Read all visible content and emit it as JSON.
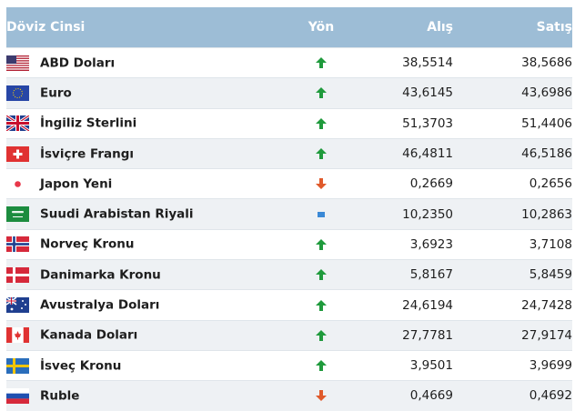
{
  "table": {
    "headers": {
      "name": "Döviz Cinsi",
      "direction": "Yön",
      "buy": "Alış",
      "sell": "Satış"
    },
    "rows": [
      {
        "flag": "us-flag-icon",
        "name": "ABD Doları",
        "direction": "up",
        "buy": "38,5514",
        "sell": "38,5686"
      },
      {
        "flag": "eu-flag-icon",
        "name": "Euro",
        "direction": "up",
        "buy": "43,6145",
        "sell": "43,6986"
      },
      {
        "flag": "gb-flag-icon",
        "name": "İngiliz Sterlini",
        "direction": "up",
        "buy": "51,3703",
        "sell": "51,4406"
      },
      {
        "flag": "ch-flag-icon",
        "name": "İsviçre Frangı",
        "direction": "up",
        "buy": "46,4811",
        "sell": "46,5186"
      },
      {
        "flag": "jp-flag-icon",
        "name": "Japon Yeni",
        "direction": "down",
        "buy": "0,2669",
        "sell": "0,2656"
      },
      {
        "flag": "sa-flag-icon",
        "name": "Suudi Arabistan Riyali",
        "direction": "flat",
        "buy": "10,2350",
        "sell": "10,2863"
      },
      {
        "flag": "no-flag-icon",
        "name": "Norveç Kronu",
        "direction": "up",
        "buy": "3,6923",
        "sell": "3,7108"
      },
      {
        "flag": "dk-flag-icon",
        "name": "Danimarka Kronu",
        "direction": "up",
        "buy": "5,8167",
        "sell": "5,8459"
      },
      {
        "flag": "au-flag-icon",
        "name": "Avustralya Doları",
        "direction": "up",
        "buy": "24,6194",
        "sell": "24,7428"
      },
      {
        "flag": "ca-flag-icon",
        "name": "Kanada Doları",
        "direction": "up",
        "buy": "27,7781",
        "sell": "27,9174"
      },
      {
        "flag": "se-flag-icon",
        "name": "İsveç Kronu",
        "direction": "up",
        "buy": "3,9501",
        "sell": "3,9699"
      },
      {
        "flag": "ru-flag-icon",
        "name": "Ruble",
        "direction": "down",
        "buy": "0,4669",
        "sell": "0,4692"
      }
    ]
  },
  "colors": {
    "header_bg": "#9dbdd6",
    "up": "#1f9a3c",
    "down": "#e05a2b",
    "flat": "#3a89d6",
    "row_alt": "#eef1f4"
  }
}
